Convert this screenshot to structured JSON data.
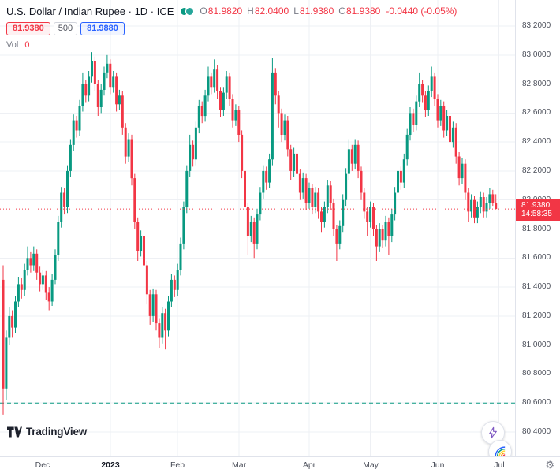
{
  "legend": {
    "title": "U.S. Dollar / Indian Rupee · 1D · ICE",
    "ohlc": [
      {
        "label": "O",
        "value": "81.9820"
      },
      {
        "label": "H",
        "value": "82.0400"
      },
      {
        "label": "L",
        "value": "81.9380"
      },
      {
        "label": "C",
        "value": "81.9380"
      }
    ],
    "change": "-0.0440 (-0.05%)"
  },
  "order_widget": {
    "sell": "81.9380",
    "qty": "500",
    "buy": "81.9880"
  },
  "volume": {
    "label": "Vol",
    "value": "0"
  },
  "price_line": {
    "price": "81.9380",
    "time": "14:58:35"
  },
  "logo": {
    "text": "TradingView"
  },
  "icons": {
    "gear": "⚙"
  },
  "colors": {
    "up": "#089981",
    "down": "#f23645",
    "buy": "#2962ff",
    "grid": "#eef0f4",
    "dashed": "#089981",
    "price_line": "#f23645",
    "axis_text": "#4a4e59"
  },
  "chart_data": {
    "type": "candlestick",
    "title": "U.S. Dollar / Indian Rupee",
    "interval": "1D",
    "exchange": "ICE",
    "ylim": [
      80.4,
      83.2
    ],
    "grid": true,
    "yticks": [
      "83.2000",
      "83.0000",
      "82.8000",
      "82.6000",
      "82.4000",
      "82.2000",
      "82.0000",
      "81.8000",
      "81.6000",
      "81.4000",
      "81.2000",
      "81.0000",
      "80.8000",
      "80.6000",
      "80.4000"
    ],
    "xticks": [
      {
        "label": "Dec",
        "index": 13
      },
      {
        "label": "2023",
        "index": 35,
        "year": true
      },
      {
        "label": "Feb",
        "index": 57
      },
      {
        "label": "Mar",
        "index": 77
      },
      {
        "label": "Apr",
        "index": 100
      },
      {
        "label": "May",
        "index": 120
      },
      {
        "label": "Jun",
        "index": 142
      },
      {
        "label": "Jul",
        "index": 162
      }
    ],
    "last_price_line": 81.938,
    "dashed_level": 80.6,
    "candles": [
      [
        81.45,
        81.55,
        80.52,
        80.7
      ],
      [
        80.7,
        81.1,
        80.62,
        81.05
      ],
      [
        81.05,
        81.26,
        81,
        81.2
      ],
      [
        81.2,
        81.24,
        81.05,
        81.12
      ],
      [
        81.12,
        81.34,
        81.08,
        81.3
      ],
      [
        81.3,
        81.47,
        81.26,
        81.42
      ],
      [
        81.42,
        81.46,
        81.32,
        81.38
      ],
      [
        81.38,
        81.56,
        81.34,
        81.52
      ],
      [
        81.52,
        81.68,
        81.48,
        81.6
      ],
      [
        81.6,
        81.64,
        81.5,
        81.55
      ],
      [
        81.55,
        81.68,
        81.51,
        81.63
      ],
      [
        81.63,
        81.66,
        81.45,
        81.5
      ],
      [
        81.5,
        81.54,
        81.37,
        81.42
      ],
      [
        81.42,
        81.52,
        81.38,
        81.48
      ],
      [
        81.48,
        81.51,
        81.31,
        81.36
      ],
      [
        81.36,
        81.4,
        81.24,
        81.3
      ],
      [
        81.3,
        81.49,
        81.27,
        81.45
      ],
      [
        81.45,
        81.66,
        81.42,
        81.62
      ],
      [
        81.62,
        81.89,
        81.58,
        81.85
      ],
      [
        81.85,
        82.09,
        81.81,
        82.05
      ],
      [
        82.05,
        82.08,
        81.9,
        81.95
      ],
      [
        81.95,
        82.24,
        81.91,
        82.2
      ],
      [
        82.2,
        82.42,
        82.16,
        82.38
      ],
      [
        82.38,
        82.59,
        82.34,
        82.55
      ],
      [
        82.55,
        82.58,
        82.43,
        82.48
      ],
      [
        82.48,
        82.69,
        82.44,
        82.65
      ],
      [
        82.65,
        82.88,
        82.61,
        82.8
      ],
      [
        82.8,
        82.83,
        82.67,
        82.72
      ],
      [
        82.72,
        82.89,
        82.68,
        82.85
      ],
      [
        82.85,
        83.02,
        82.81,
        82.96
      ],
      [
        82.96,
        82.99,
        82.75,
        82.8
      ],
      [
        82.8,
        82.83,
        82.58,
        82.64
      ],
      [
        82.64,
        82.8,
        82.6,
        82.76
      ],
      [
        82.76,
        82.92,
        82.72,
        82.88
      ],
      [
        82.88,
        83,
        82.84,
        82.94
      ],
      [
        82.94,
        82.97,
        82.73,
        82.78
      ],
      [
        82.78,
        82.89,
        82.74,
        82.85
      ],
      [
        82.85,
        82.88,
        82.61,
        82.66
      ],
      [
        82.66,
        82.76,
        82.62,
        82.72
      ],
      [
        82.72,
        82.75,
        82.45,
        82.5
      ],
      [
        82.5,
        82.53,
        82.25,
        82.3
      ],
      [
        82.3,
        82.46,
        82.26,
        82.42
      ],
      [
        82.42,
        82.45,
        82.1,
        82.15
      ],
      [
        82.15,
        82.18,
        81.8,
        81.85
      ],
      [
        81.85,
        81.88,
        81.58,
        81.65
      ],
      [
        81.65,
        81.79,
        81.61,
        81.75
      ],
      [
        81.75,
        81.78,
        81.5,
        81.55
      ],
      [
        81.55,
        81.58,
        81.28,
        81.35
      ],
      [
        81.35,
        81.38,
        81.14,
        81.2
      ],
      [
        81.2,
        81.39,
        81.16,
        81.35
      ],
      [
        81.35,
        81.38,
        81.1,
        81.15
      ],
      [
        81.15,
        81.18,
        80.98,
        81.05
      ],
      [
        81.05,
        81.26,
        81.01,
        81.22
      ],
      [
        81.22,
        81.25,
        80.97,
        81.1
      ],
      [
        81.1,
        81.34,
        81.06,
        81.3
      ],
      [
        81.3,
        81.49,
        81.26,
        81.45
      ],
      [
        81.45,
        81.48,
        81.33,
        81.38
      ],
      [
        81.38,
        81.56,
        81.34,
        81.52
      ],
      [
        81.52,
        81.74,
        81.48,
        81.7
      ],
      [
        81.7,
        81.99,
        81.66,
        81.95
      ],
      [
        81.95,
        82.24,
        81.91,
        82.2
      ],
      [
        82.2,
        82.45,
        82.16,
        82.38
      ],
      [
        82.38,
        82.41,
        82.23,
        82.28
      ],
      [
        82.28,
        82.54,
        82.24,
        82.5
      ],
      [
        82.5,
        82.69,
        82.46,
        82.65
      ],
      [
        82.65,
        82.68,
        82.53,
        82.58
      ],
      [
        82.58,
        82.76,
        82.54,
        82.72
      ],
      [
        82.72,
        82.92,
        82.68,
        82.85
      ],
      [
        82.85,
        82.88,
        82.73,
        82.78
      ],
      [
        82.78,
        82.97,
        82.74,
        82.9
      ],
      [
        82.9,
        82.93,
        82.7,
        82.75
      ],
      [
        82.75,
        82.78,
        82.57,
        82.62
      ],
      [
        82.62,
        82.78,
        82.58,
        82.74
      ],
      [
        82.74,
        82.89,
        82.7,
        82.85
      ],
      [
        82.85,
        82.88,
        82.65,
        82.7
      ],
      [
        82.7,
        82.73,
        82.5,
        82.55
      ],
      [
        82.55,
        82.66,
        82.51,
        82.62
      ],
      [
        82.62,
        82.65,
        82.4,
        82.45
      ],
      [
        82.45,
        82.48,
        82.15,
        82.2
      ],
      [
        82.2,
        82.23,
        81.9,
        81.95
      ],
      [
        81.95,
        81.98,
        81.62,
        81.75
      ],
      [
        81.75,
        81.89,
        81.71,
        81.85
      ],
      [
        81.85,
        81.88,
        81.6,
        81.7
      ],
      [
        81.7,
        81.94,
        81.66,
        81.9
      ],
      [
        81.9,
        82.09,
        81.86,
        82.05
      ],
      [
        82.05,
        82.24,
        82.01,
        82.2
      ],
      [
        82.2,
        82.23,
        82.07,
        82.12
      ],
      [
        82.12,
        82.32,
        82.08,
        82.28
      ],
      [
        82.28,
        82.98,
        82.24,
        82.88
      ],
      [
        82.88,
        82.91,
        82.66,
        82.72
      ],
      [
        82.72,
        82.75,
        82.5,
        82.6
      ],
      [
        82.6,
        82.63,
        82.4,
        82.45
      ],
      [
        82.45,
        82.59,
        82.41,
        82.55
      ],
      [
        82.55,
        82.58,
        82.3,
        82.35
      ],
      [
        82.35,
        82.38,
        82.14,
        82.2
      ],
      [
        82.2,
        82.36,
        82.16,
        82.32
      ],
      [
        82.32,
        82.35,
        82.12,
        82.18
      ],
      [
        82.18,
        82.21,
        82,
        82.05
      ],
      [
        82.05,
        82.19,
        82.01,
        82.15
      ],
      [
        82.15,
        82.18,
        81.93,
        81.98
      ],
      [
        81.98,
        82.12,
        81.94,
        82.08
      ],
      [
        82.08,
        82.11,
        81.9,
        81.95
      ],
      [
        81.95,
        82.09,
        81.91,
        82.05
      ],
      [
        82.05,
        82.08,
        81.87,
        81.92
      ],
      [
        81.92,
        81.95,
        81.78,
        81.85
      ],
      [
        81.85,
        81.99,
        81.81,
        81.95
      ],
      [
        81.95,
        82.14,
        81.91,
        82.1
      ],
      [
        82.1,
        82.13,
        81.93,
        81.98
      ],
      [
        81.98,
        82.01,
        81.75,
        81.8
      ],
      [
        81.8,
        81.83,
        81.58,
        81.7
      ],
      [
        81.7,
        81.86,
        81.66,
        81.82
      ],
      [
        81.82,
        82.04,
        81.78,
        82
      ],
      [
        82,
        82.22,
        81.96,
        82.18
      ],
      [
        82.18,
        82.42,
        82.14,
        82.35
      ],
      [
        82.35,
        82.38,
        82.2,
        82.25
      ],
      [
        82.25,
        82.42,
        82.21,
        82.38
      ],
      [
        82.38,
        82.41,
        82.15,
        82.2
      ],
      [
        82.2,
        82.23,
        82,
        82.05
      ],
      [
        82.05,
        82.08,
        81.87,
        81.92
      ],
      [
        81.92,
        81.95,
        81.75,
        81.85
      ],
      [
        81.85,
        81.99,
        81.81,
        81.95
      ],
      [
        81.95,
        81.98,
        81.75,
        81.8
      ],
      [
        81.8,
        81.83,
        81.58,
        81.68
      ],
      [
        81.68,
        81.84,
        81.64,
        81.8
      ],
      [
        81.8,
        81.83,
        81.67,
        81.72
      ],
      [
        81.72,
        81.89,
        81.68,
        81.85
      ],
      [
        81.85,
        81.88,
        81.62,
        81.75
      ],
      [
        81.75,
        81.94,
        81.71,
        81.9
      ],
      [
        81.9,
        82.09,
        81.86,
        82.05
      ],
      [
        82.05,
        82.24,
        82.01,
        82.2
      ],
      [
        82.2,
        82.23,
        82.07,
        82.12
      ],
      [
        82.12,
        82.32,
        82.08,
        82.28
      ],
      [
        82.28,
        82.49,
        82.24,
        82.45
      ],
      [
        82.45,
        82.64,
        82.41,
        82.6
      ],
      [
        82.6,
        82.63,
        82.47,
        82.52
      ],
      [
        82.52,
        82.72,
        82.48,
        82.68
      ],
      [
        82.68,
        82.88,
        82.64,
        82.8
      ],
      [
        82.8,
        82.83,
        82.67,
        82.72
      ],
      [
        82.72,
        82.75,
        82.57,
        82.62
      ],
      [
        82.62,
        82.79,
        82.58,
        82.75
      ],
      [
        82.75,
        82.92,
        82.71,
        82.85
      ],
      [
        82.85,
        82.88,
        82.65,
        82.7
      ],
      [
        82.7,
        82.73,
        82.5,
        82.55
      ],
      [
        82.55,
        82.69,
        82.51,
        82.65
      ],
      [
        82.65,
        82.68,
        82.43,
        82.48
      ],
      [
        82.48,
        82.62,
        82.44,
        82.58
      ],
      [
        82.58,
        82.61,
        82.35,
        82.4
      ],
      [
        82.4,
        82.54,
        82.36,
        82.5
      ],
      [
        82.5,
        82.53,
        82.25,
        82.3
      ],
      [
        82.3,
        82.33,
        82.1,
        82.15
      ],
      [
        82.15,
        82.29,
        82.11,
        82.25
      ],
      [
        82.25,
        82.28,
        82,
        82.05
      ],
      [
        82.05,
        82.08,
        81.85,
        81.92
      ],
      [
        81.92,
        82.04,
        81.88,
        82
      ],
      [
        82,
        82.03,
        81.84,
        81.88
      ],
      [
        81.88,
        81.99,
        81.84,
        81.95
      ],
      [
        81.95,
        82.06,
        81.91,
        82.02
      ],
      [
        82.02,
        82.05,
        81.88,
        81.92
      ],
      [
        81.92,
        82.02,
        81.88,
        81.98
      ],
      [
        81.98,
        82.08,
        81.94,
        82.04
      ],
      [
        82.04,
        82.07,
        81.96,
        81.982
      ],
      [
        81.982,
        82.04,
        81.938,
        81.938
      ]
    ]
  }
}
